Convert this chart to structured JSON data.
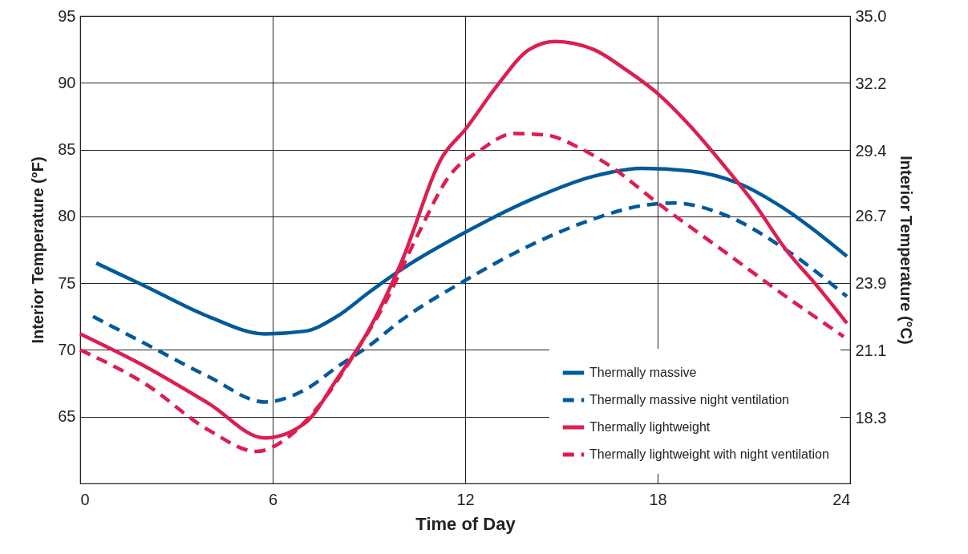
{
  "chart_data": {
    "type": "line",
    "xlabel": "Time of Day",
    "ylabel": "Interior Temperature (°F)",
    "y2label": "Interior Temperature (°C)",
    "xlim": [
      0,
      24
    ],
    "xticks": [
      0,
      6,
      12,
      18,
      24
    ],
    "ylim": [
      60,
      95
    ],
    "yticks": [
      65,
      70,
      75,
      80,
      85,
      90,
      95
    ],
    "y2lim": [
      15.6,
      35
    ],
    "y2ticks": [
      18.3,
      21.1,
      23.9,
      26.7,
      29.4,
      32.2,
      {
        "value": 35,
        "label": "35.0"
      }
    ],
    "grid": true,
    "legend": "bottom right",
    "series": [
      {
        "name": "Thermally massive",
        "color": "#005a9c",
        "line_style": "solid",
        "x": [
          0.5,
          2,
          4,
          5.75,
          7,
          8,
          9,
          10,
          12,
          14,
          16,
          17.5,
          19,
          20.5,
          22,
          23.9
        ],
        "values": [
          76.5,
          74.8,
          72.5,
          71.2,
          71.4,
          72.5,
          74.3,
          76,
          78.8,
          81.2,
          83,
          83.6,
          83.4,
          82.5,
          80.5,
          77
        ]
      },
      {
        "name": "Thermally massive night ventilation",
        "color": "#005a9c",
        "line_style": "dashed",
        "x": [
          0.4,
          2,
          4,
          5.75,
          7,
          8,
          9,
          10,
          12,
          14,
          16,
          17.5,
          18.5,
          20,
          22,
          23.9
        ],
        "values": [
          72.5,
          70.5,
          68,
          66.1,
          67,
          68.7,
          70.3,
          72.2,
          75.2,
          77.8,
          79.8,
          80.8,
          81,
          80.2,
          77.5,
          74
        ]
      },
      {
        "name": "Thermally lightweight",
        "color": "#dc1e50",
        "line_style": "solid",
        "x": [
          0,
          2,
          4,
          5.75,
          7,
          8,
          9,
          10,
          11.3,
          12,
          13,
          14,
          14.8,
          16,
          17,
          18,
          19,
          20,
          21,
          22,
          23,
          23.9
        ],
        "values": [
          71.2,
          68.8,
          66,
          63.4,
          64.5,
          67.8,
          71.5,
          76.5,
          84.5,
          86.5,
          89.8,
          92.5,
          93.1,
          92.5,
          91,
          89.2,
          86.8,
          84,
          81,
          77.5,
          74.7,
          72
        ]
      },
      {
        "name": "Thermally lightweight with night ventilation",
        "color": "#dc1e50",
        "line_style": "dashed",
        "x": [
          0,
          2,
          4,
          5.5,
          6.5,
          7.5,
          8.5,
          9.5,
          10.5,
          11.5,
          12.5,
          13.5,
          14.5,
          15.5,
          16.5,
          18,
          20,
          22,
          23.8
        ],
        "values": [
          70,
          67.5,
          64,
          62.4,
          63.5,
          66,
          69.5,
          73.5,
          78.5,
          83,
          85,
          86.2,
          86.1,
          85.2,
          83.8,
          81,
          77.5,
          74,
          71
        ]
      }
    ]
  }
}
